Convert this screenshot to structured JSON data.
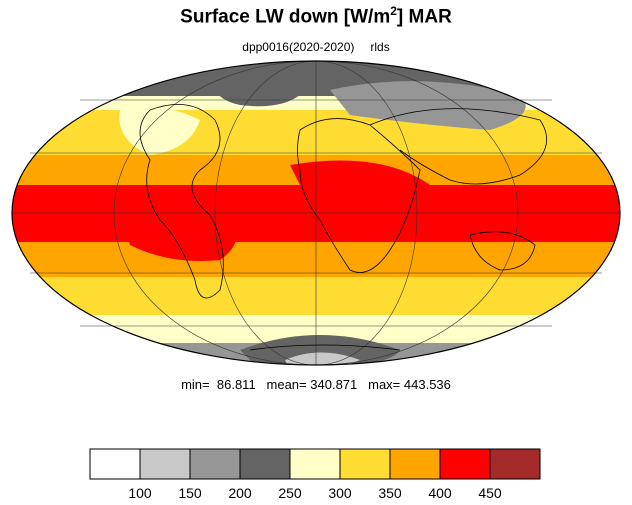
{
  "title": {
    "main": "Surface LW down [W/m",
    "sup": "2",
    "tail": "]  MAR"
  },
  "subtitle": {
    "experiment": "dpp0016(2020-2020)",
    "variable": "rlds"
  },
  "stats": {
    "min_label": "min=",
    "min": "86.811",
    "mean_label": "mean=",
    "mean": "340.871",
    "max_label": "max=",
    "max": "443.536"
  },
  "projection": "mollweide",
  "colorbar": {
    "ticks": [
      "100",
      "150",
      "200",
      "250",
      "300",
      "350",
      "400",
      "450"
    ],
    "colors": [
      "#ffffff",
      "#c8c8c8",
      "#969696",
      "#646464",
      "#ffffc8",
      "#ffdc32",
      "#ffa500",
      "#ff0000",
      "#a52a2a"
    ]
  }
}
